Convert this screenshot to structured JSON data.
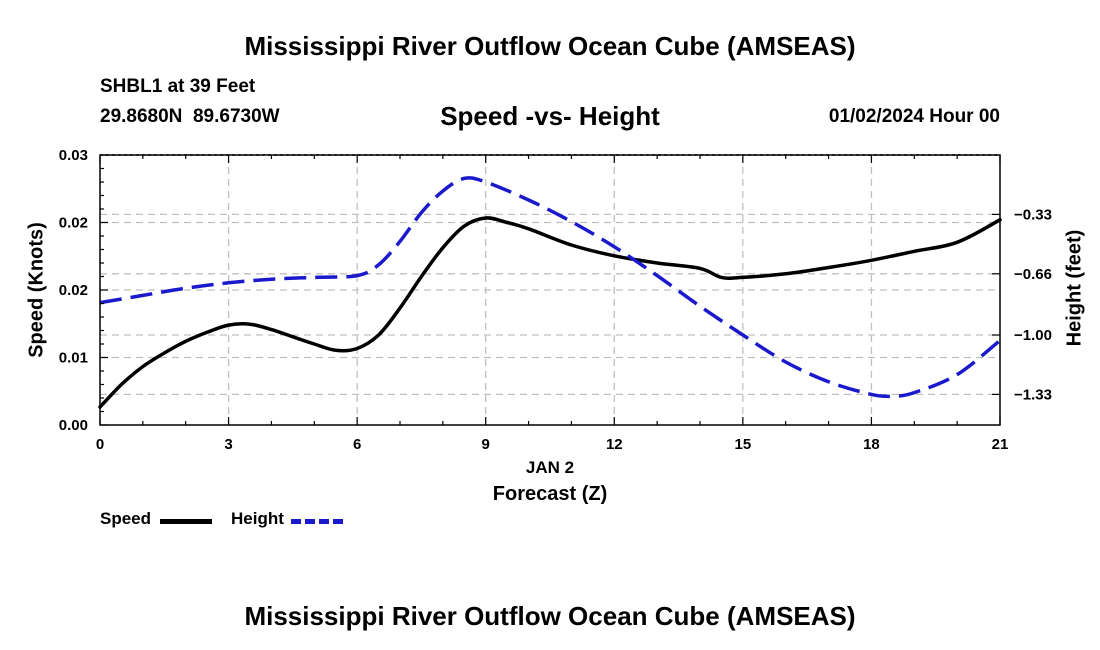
{
  "header": {
    "title": "Mississippi River Outflow Ocean Cube (AMSEAS)",
    "station": "SHBL1 at 39 Feet",
    "coords": "29.8680N  89.6730W",
    "date": "01/02/2024 Hour 00"
  },
  "footer": {
    "title": "Mississippi River Outflow Ocean Cube (AMSEAS)"
  },
  "chart_data": {
    "type": "line",
    "title": "Speed -vs- Height",
    "xlabel": "Forecast (Z)",
    "xsublabel": "JAN 2",
    "ylabel": "Speed (Knots)",
    "y2label": "Height (feet)",
    "xlim": [
      0,
      21
    ],
    "ylim": [
      0,
      0.03
    ],
    "y2lim": [
      -1.5,
      0
    ],
    "x_ticks": [
      0,
      3,
      6,
      9,
      12,
      15,
      18,
      21
    ],
    "x_tick_labels": [
      "0",
      "3",
      "6",
      "9",
      "12",
      "15",
      "18",
      "21"
    ],
    "y_ticks": [
      0,
      0.0075,
      0.015,
      0.0225,
      0.03
    ],
    "y_tick_labels": [
      "0.00",
      "0.01",
      "0.02",
      "0.02",
      "0.03"
    ],
    "y2_ticks": [
      -0.33,
      -0.66,
      -1.0,
      -1.33
    ],
    "y2_tick_labels": [
      "−0.33",
      "−0.66",
      "−1.00",
      "−1.33"
    ],
    "grid": true,
    "legend_position": "bottom-left",
    "colors": {
      "speed": "#000000",
      "height": "#1a1acc",
      "grid": "#c0c0c0"
    },
    "series": [
      {
        "name": "Speed",
        "axis": "left",
        "style": "solid",
        "x": [
          0,
          0.5,
          1,
          1.5,
          2,
          2.5,
          3,
          3.5,
          4,
          4.5,
          5,
          5.5,
          6,
          6.5,
          7,
          7.5,
          8,
          8.5,
          9,
          9.5,
          10,
          11,
          12,
          13,
          14,
          14.5,
          15,
          16,
          17,
          18,
          19,
          20,
          21
        ],
        "values": [
          0.002,
          0.0045,
          0.0065,
          0.008,
          0.0093,
          0.0103,
          0.0111,
          0.0112,
          0.0106,
          0.0098,
          0.009,
          0.0083,
          0.0085,
          0.01,
          0.013,
          0.0165,
          0.0197,
          0.0221,
          0.023,
          0.0225,
          0.0218,
          0.02,
          0.0188,
          0.018,
          0.0174,
          0.0164,
          0.0164,
          0.0168,
          0.0175,
          0.0183,
          0.0193,
          0.0203,
          0.0228
        ]
      },
      {
        "name": "Height",
        "axis": "right",
        "style": "dashed",
        "x": [
          0,
          1,
          2,
          3,
          4,
          5,
          6,
          6.5,
          7,
          7.5,
          8,
          8.5,
          9,
          10,
          11,
          12,
          13,
          14,
          15,
          16,
          17,
          18,
          18.5,
          19,
          20,
          21
        ],
        "values": [
          -0.82,
          -0.78,
          -0.74,
          -0.71,
          -0.69,
          -0.68,
          -0.67,
          -0.61,
          -0.48,
          -0.32,
          -0.2,
          -0.13,
          -0.15,
          -0.25,
          -0.37,
          -0.51,
          -0.67,
          -0.84,
          -1.0,
          -1.15,
          -1.26,
          -1.33,
          -1.34,
          -1.32,
          -1.22,
          -1.03
        ]
      }
    ]
  }
}
